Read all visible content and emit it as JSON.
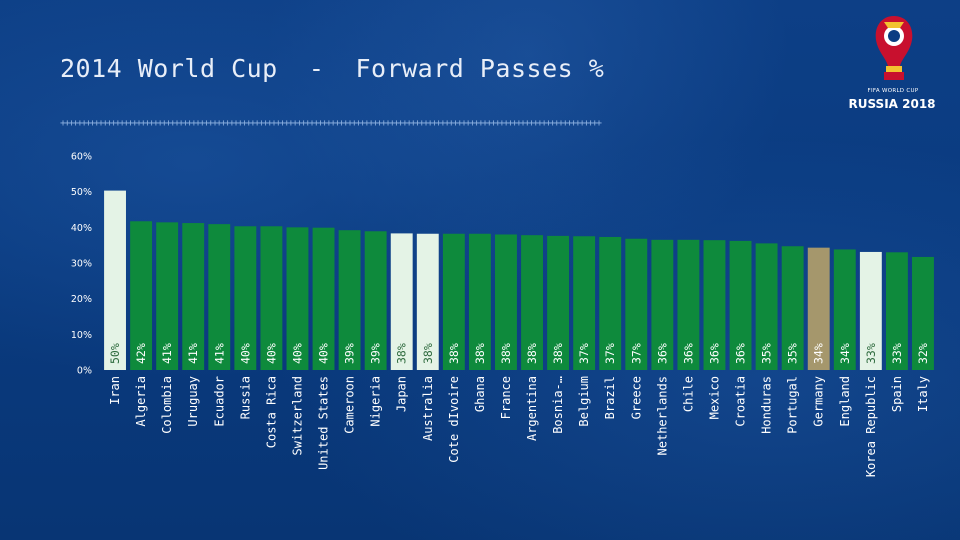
{
  "slide": {
    "title": "2014 World Cup  -  Forward Passes %",
    "divider": "++++++++++++++++++++++++++++++++++++++++++++++++++++++++++++++++++++++++++++++++++++++++++++++++++++++++++++++++++++++++++++++++"
  },
  "logo": {
    "small_text": "FIFA WORLD CUP",
    "big_text": "RUSSIA 2018",
    "icon": "world-cup-trophy-icon"
  },
  "colors": {
    "background": "#0b3c82",
    "bar_default": "#0e8a3c",
    "bar_highlight": "#e4f3e6",
    "bar_germany": "#a5976c"
  },
  "chart_data": {
    "type": "bar",
    "title": "",
    "xlabel": "",
    "ylabel": "",
    "ylim": [
      0,
      60
    ],
    "yticks": [
      "0%",
      "10%",
      "20%",
      "30%",
      "40%",
      "50%",
      "60%"
    ],
    "grid": false,
    "legend": "none",
    "categories": [
      "Iran",
      "Algeria",
      "Colombia",
      "Uruguay",
      "Ecuador",
      "Russia",
      "Costa Rica",
      "Switzerland",
      "United States",
      "Cameroon",
      "Nigeria",
      "Japan",
      "Australia",
      "Cote dIvoire",
      "Ghana",
      "France",
      "Argentina",
      "Bosnia-…",
      "Belgium",
      "Brazil",
      "Greece",
      "Netherlands",
      "Chile",
      "Mexico",
      "Croatia",
      "Honduras",
      "Portugal",
      "Germany",
      "England",
      "Korea Republic",
      "Spain",
      "Italy"
    ],
    "values": [
      50.3,
      41.7,
      41.4,
      41.2,
      40.9,
      40.3,
      40.3,
      40.0,
      39.9,
      39.2,
      38.9,
      38.3,
      38.2,
      38.2,
      38.2,
      38.0,
      37.8,
      37.6,
      37.5,
      37.3,
      36.8,
      36.5,
      36.5,
      36.4,
      36.2,
      35.5,
      34.7,
      34.3,
      33.8,
      33.1,
      33.0,
      31.7
    ],
    "value_labels": [
      "50%",
      "42%",
      "41%",
      "41%",
      "41%",
      "40%",
      "40%",
      "40%",
      "40%",
      "39%",
      "39%",
      "38%",
      "38%",
      "38%",
      "38%",
      "38%",
      "38%",
      "38%",
      "37%",
      "37%",
      "37%",
      "36%",
      "36%",
      "36%",
      "36%",
      "35%",
      "35%",
      "34%",
      "34%",
      "33%",
      "33%",
      "32%"
    ],
    "highlight": [
      "highlight",
      "default",
      "default",
      "default",
      "default",
      "default",
      "default",
      "default",
      "default",
      "default",
      "default",
      "highlight",
      "highlight",
      "default",
      "default",
      "default",
      "default",
      "default",
      "default",
      "default",
      "default",
      "default",
      "default",
      "default",
      "default",
      "default",
      "default",
      "germany",
      "default",
      "highlight",
      "default",
      "default"
    ]
  }
}
